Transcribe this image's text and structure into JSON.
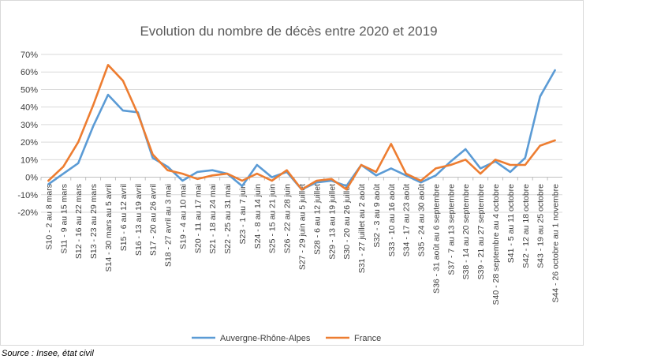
{
  "chart_data": {
    "type": "line",
    "title": "Evolution  du nombre de décès entre 2020 et 2019",
    "xlabel": "",
    "ylabel": "",
    "ylim": [
      -20,
      70
    ],
    "yticks": [
      "-20%",
      "-10%",
      "0%",
      "10%",
      "20%",
      "30%",
      "40%",
      "50%",
      "60%",
      "70%"
    ],
    "grid": true,
    "legend_position": "bottom",
    "categories": [
      "S10 - 2 au 8 mars",
      "S11 - 9 au 15 mars",
      "S12 - 16 au 22 mars",
      "S13 - 23 au 29 mars",
      "S14 - 30 mars au 5 avril",
      "S15 - 6 au 12 avril",
      "S16 - 13 au 19 avril",
      "S17 - 20 au 26 avril",
      "S18 - 27 avril au 3 mai",
      "S19 - 4 au 10 mai",
      "S20 - 11 au 17 mai",
      "S21 - 18 au 24 mai",
      "S22 - 25 au 31 mai",
      "S23 - 1 au 7 juin",
      "S24 - 8 au 14 juin",
      "S25 - 15 au 21 juin",
      "S26 - 22 au 28 juin",
      "S27 - 29 juin au 5 juillet",
      "S28 - 6 au 12 juillet",
      "S29 - 13 au 19 juillet",
      "S30 - 20 au 26 juillet",
      "S31 - 27 juillet au 2 août",
      "S32 - 3 au 9 août",
      "S33 - 10 au 16 août",
      "S34 - 17 au 23 août",
      "S35 - 24 au 30 août",
      "S36 - 31 août au 6 septembre",
      "S37 - 7 au 13 septembre",
      "S38 - 14 au 20 septembre",
      "S39 - 21 au 27 septembre",
      "S40 - 28 septembre au 4 octobre",
      "S41 - 5 au 11 octobre",
      "S42 - 12 au 18 octobre",
      "S43 - 19 au 25 octobre",
      "S44 - 26 octobre au 1 novembre"
    ],
    "series": [
      {
        "name": "Auvergne-Rhône-Alpes",
        "color": "#5b9bd5",
        "values": [
          -4,
          2,
          8,
          29,
          47,
          38,
          37,
          11,
          6,
          -2,
          3,
          4,
          2,
          -5,
          7,
          0,
          3,
          -7,
          -3,
          -2,
          -5,
          7,
          1,
          5,
          1,
          -3,
          1,
          9,
          16,
          5,
          9,
          3,
          11,
          46,
          61
        ]
      },
      {
        "name": "France",
        "color": "#ed7d31",
        "values": [
          -2,
          6,
          20,
          41,
          64,
          55,
          36,
          13,
          4,
          2,
          -1,
          1,
          2,
          -2,
          2,
          -2,
          4,
          -7,
          -2,
          -1,
          -7,
          7,
          3,
          19,
          2,
          -2,
          5,
          7,
          10,
          2,
          10,
          7,
          7,
          18,
          21
        ]
      }
    ]
  },
  "source_text": "Source : Insee, état civil"
}
